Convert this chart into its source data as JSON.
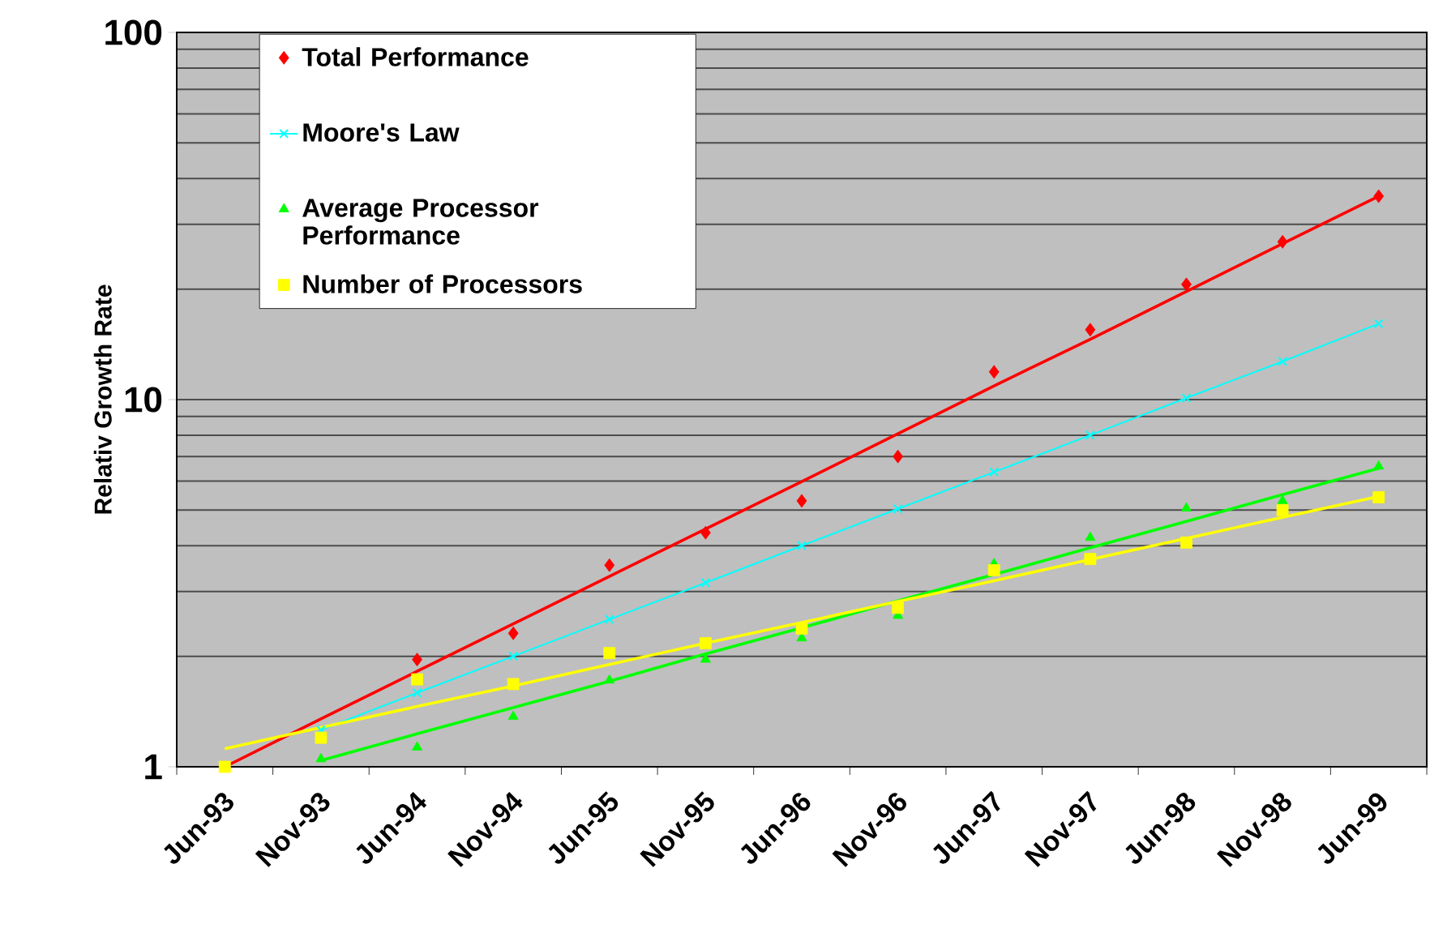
{
  "chart_data": {
    "type": "scatter",
    "ylabel": "Relativ Growth Rate",
    "log": "y",
    "grid": "y",
    "legend": "top left",
    "ylim": [
      1,
      100
    ],
    "yticks": [
      1,
      10,
      100
    ],
    "categories": [
      "Jun-93",
      "Nov-93",
      "Jun-94",
      "Nov-94",
      "Jun-95",
      "Nov-95",
      "Jun-96",
      "Nov-96",
      "Jun-97",
      "Nov-97",
      "Jun-98",
      "Nov-98",
      "Jun-99"
    ],
    "series": [
      {
        "name": "Total  Performance",
        "marker": "diamond",
        "color": "#ff0000",
        "values": [
          null,
          null,
          1.96,
          2.31,
          3.54,
          4.34,
          5.3,
          7.0,
          11.9,
          15.5,
          20.6,
          26.9,
          35.8
        ]
      },
      {
        "name": "Moore's Law",
        "type": "line",
        "marker": "cross",
        "color": "#00ffff",
        "values": [
          null,
          1.26,
          1.59,
          2.0,
          2.52,
          3.17,
          4.0,
          5.04,
          6.35,
          8.0,
          10.1,
          12.7,
          16.1
        ]
      },
      {
        "name": "Average Processor Performance",
        "marker": "triangle",
        "color": "#00ff00",
        "values": [
          null,
          1.05,
          1.13,
          1.37,
          1.72,
          1.96,
          2.24,
          2.58,
          3.57,
          4.21,
          5.06,
          5.3,
          6.58
        ]
      },
      {
        "name": "Number of Processors",
        "marker": "square",
        "color": "#ffff00",
        "values": [
          1,
          1.2,
          1.73,
          1.68,
          2.04,
          2.17,
          2.38,
          2.71,
          3.43,
          3.68,
          4.08,
          5.0,
          5.42
        ]
      },
      {
        "type": "line",
        "marker": "none",
        "color": "#ff0000",
        "values": [
          1,
          1.35,
          1.82,
          2.45,
          3.3,
          4.44,
          5.98,
          8.07,
          10.9,
          14.6,
          19.7,
          26.6,
          35.8
        ]
      },
      {
        "type": "line",
        "marker": "none",
        "color": "#00ff00",
        "values": [
          null,
          1.04,
          1.23,
          1.45,
          1.71,
          2.03,
          2.39,
          2.83,
          3.34,
          3.95,
          4.66,
          5.51,
          6.5
        ]
      },
      {
        "type": "line",
        "marker": "none",
        "color": "#ffff00",
        "values": [
          1.12,
          1.28,
          1.46,
          1.66,
          1.9,
          2.17,
          2.47,
          2.82,
          3.21,
          3.67,
          4.19,
          4.78,
          5.45
        ]
      }
    ]
  }
}
